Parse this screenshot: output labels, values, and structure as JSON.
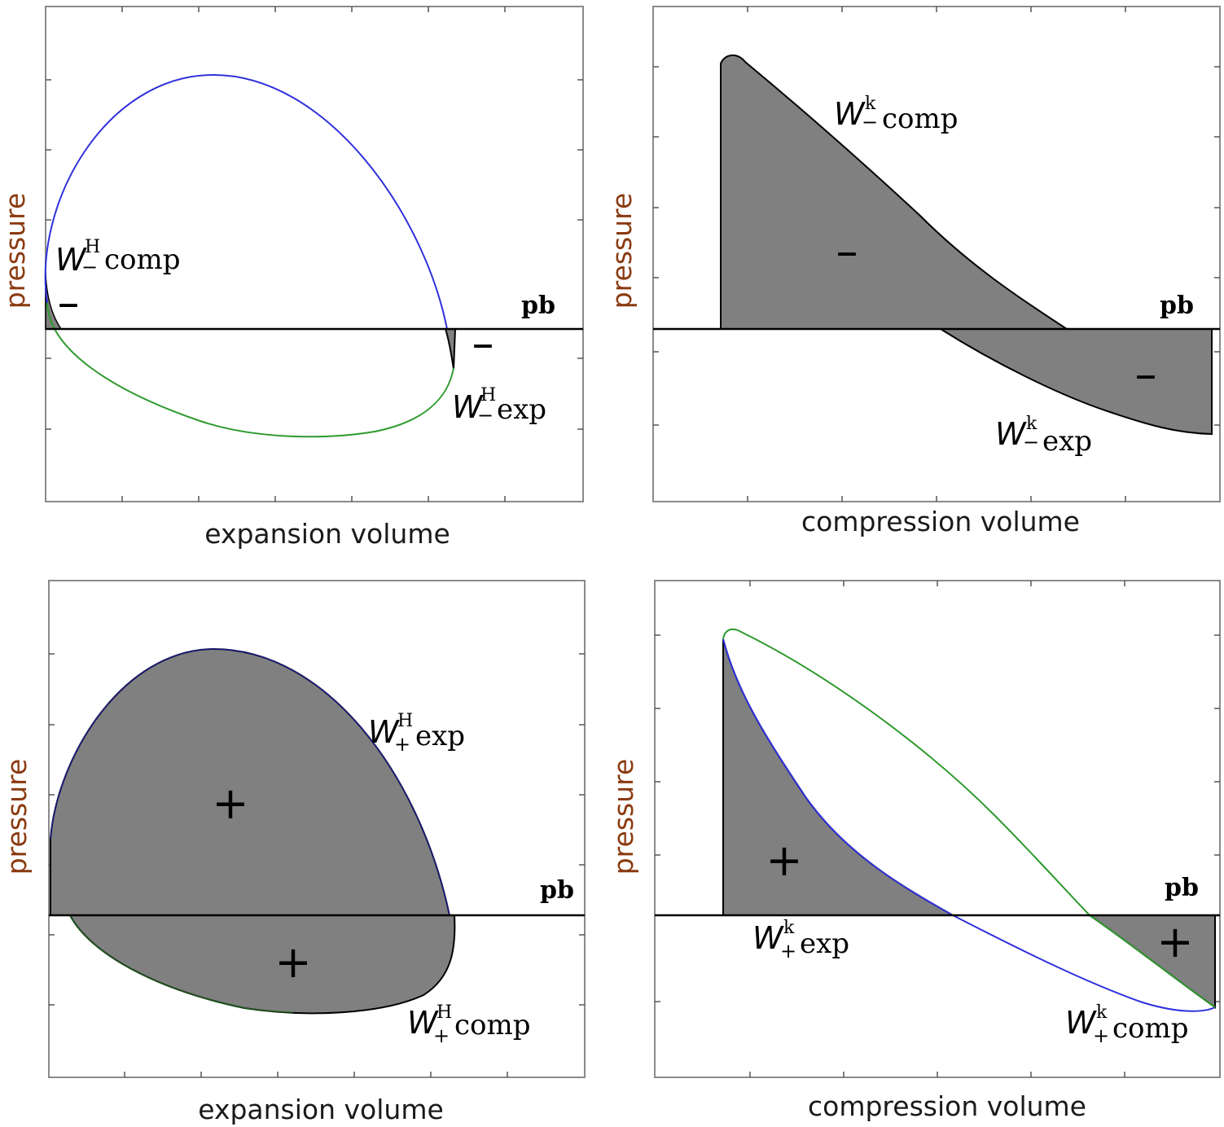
{
  "colors": {
    "fill": "#808080",
    "expansion_curve": "#2f2fdc",
    "compression_curve": "#2e9a2e",
    "axis": "#000000",
    "frame": "#8a8a8a",
    "ylabel": "#8a3a10"
  },
  "panels": {
    "top_left": {
      "xlabel": "expansion volume",
      "ylabel": "pressure",
      "baseline": "pb",
      "label_a": {
        "w": "W",
        "sup": "H",
        "sub": "−",
        "word": "comp"
      },
      "label_b": {
        "w": "W",
        "sup": "H",
        "sub": "−",
        "word": "exp"
      },
      "sign_a": "–",
      "sign_b": "–"
    },
    "top_right": {
      "xlabel": "compression volume",
      "ylabel": "pressure",
      "baseline": "pb",
      "label_a": {
        "w": "W",
        "sup": "k",
        "sub": "−",
        "word": "comp"
      },
      "label_b": {
        "w": "W",
        "sup": "k",
        "sub": "−",
        "word": "exp"
      },
      "sign_a": "–",
      "sign_b": "–"
    },
    "bottom_left": {
      "xlabel": "expansion volume",
      "ylabel": "pressure",
      "baseline": "pb",
      "label_a": {
        "w": "W",
        "sup": "H",
        "sub": "+",
        "word": "exp"
      },
      "label_b": {
        "w": "W",
        "sup": "H",
        "sub": "+",
        "word": "comp"
      },
      "sign_a": "+",
      "sign_b": "+"
    },
    "bottom_right": {
      "xlabel": "compression volume",
      "ylabel": "pressure",
      "baseline": "pb",
      "label_a": {
        "w": "W",
        "sup": "k",
        "sub": "+",
        "word": "exp"
      },
      "label_b": {
        "w": "W",
        "sup": "k",
        "sub": "+",
        "word": "comp"
      },
      "sign_a": "+",
      "sign_b": "+"
    }
  }
}
